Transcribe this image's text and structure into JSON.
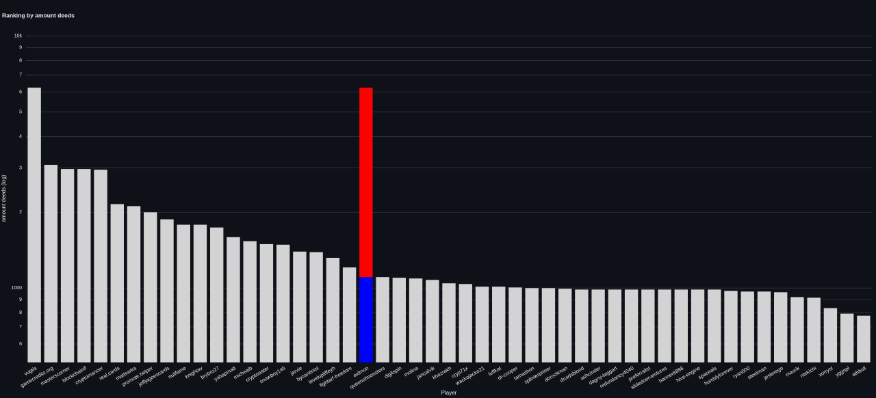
{
  "chart_data": {
    "type": "bar",
    "barmode": "stack",
    "log_y": true,
    "grid": true,
    "title": "Ranking by amount deeds",
    "ylabel": "amount deeds (log)",
    "xlabel": "Player",
    "categories": [
      "vugtis",
      "gamecredits.org",
      "masterscorner",
      "blockchainlf",
      "cryptomancer",
      "real.cards",
      "mattsarka",
      "promote.helper",
      "jeffjagoescards",
      "nullfame",
      "knightav",
      "brybro27",
      "yabapmatt",
      "michealb",
      "cryptoeater",
      "snowboy145",
      "jarvie",
      "byzantinist",
      "levelupliffeyh",
      "fightarf-freedom",
      "axlmon",
      "queenofmonsters",
      "digitspin",
      "molina",
      "jancalvik",
      "khazrakh",
      "cryp71x",
      "wackojacko21",
      "luffkat",
      "dr-cooper",
      "tamashon",
      "splinterpriner",
      "abrockman",
      "druidsblood",
      "ashcinder",
      "dagny-taggart",
      "redundancy4040",
      "preferralist",
      "slidedoorventures",
      "banner8888",
      "hive-engine",
      "spaceals",
      "humblyforever",
      "ryan000",
      "steelman",
      "jesterego",
      "mavrik",
      "ntekichi",
      "xorryst",
      "yggnpl",
      "athbull"
    ],
    "series": [
      {
        "color": "#d3d3d3",
        "values": [
          6240,
          3085,
          2970,
          2970,
          2950,
          2155,
          2115,
          2000,
          1875,
          1785,
          1785,
          1740,
          1593,
          1535,
          1495,
          1487,
          1396,
          1388,
          1319,
          1208,
          null,
          1106,
          1099,
          1092,
          1078,
          1045,
          1038,
          1013,
          1013,
          1006,
          1000,
          1000,
          994,
          987,
          987,
          987,
          987,
          987,
          987,
          987,
          987,
          987,
          975,
          969,
          969,
          963,
          921,
          916,
          833,
          792,
          777
        ]
      },
      {
        "color": "#0000ff",
        "values": [
          null,
          null,
          null,
          null,
          null,
          null,
          null,
          null,
          null,
          null,
          null,
          null,
          null,
          null,
          null,
          null,
          null,
          null,
          null,
          null,
          1106,
          null,
          null,
          null,
          null,
          null,
          null,
          null,
          null,
          null,
          null,
          null,
          null,
          null,
          null,
          null,
          null,
          null,
          null,
          null,
          null,
          null,
          null,
          null,
          null,
          null,
          null,
          null,
          null,
          null,
          null
        ]
      },
      {
        "color": "#ff0000",
        "values": [
          null,
          null,
          null,
          null,
          null,
          null,
          null,
          null,
          null,
          null,
          null,
          null,
          null,
          null,
          null,
          null,
          null,
          null,
          null,
          null,
          5134,
          null,
          null,
          null,
          null,
          null,
          null,
          null,
          null,
          null,
          null,
          null,
          null,
          null,
          null,
          null,
          null,
          null,
          null,
          null,
          null,
          null,
          null,
          null,
          null,
          null,
          null,
          null,
          null,
          null,
          null
        ]
      }
    ],
    "ylim": [
      507,
      10500
    ],
    "yticks": [
      {
        "value": 600,
        "label": "6"
      },
      {
        "value": 700,
        "label": "7"
      },
      {
        "value": 800,
        "label": "8"
      },
      {
        "value": 900,
        "label": "9"
      },
      1000,
      {
        "value": 2000,
        "label": "2"
      },
      {
        "value": 3000,
        "label": "3"
      },
      {
        "value": 4000,
        "label": "4"
      },
      {
        "value": 5000,
        "label": "5"
      },
      {
        "value": 6000,
        "label": "6"
      },
      {
        "value": 7000,
        "label": "7"
      },
      {
        "value": 8000,
        "label": "8"
      },
      {
        "value": 9000,
        "label": "9"
      },
      {
        "value": 10000,
        "label": "10k"
      }
    ]
  }
}
